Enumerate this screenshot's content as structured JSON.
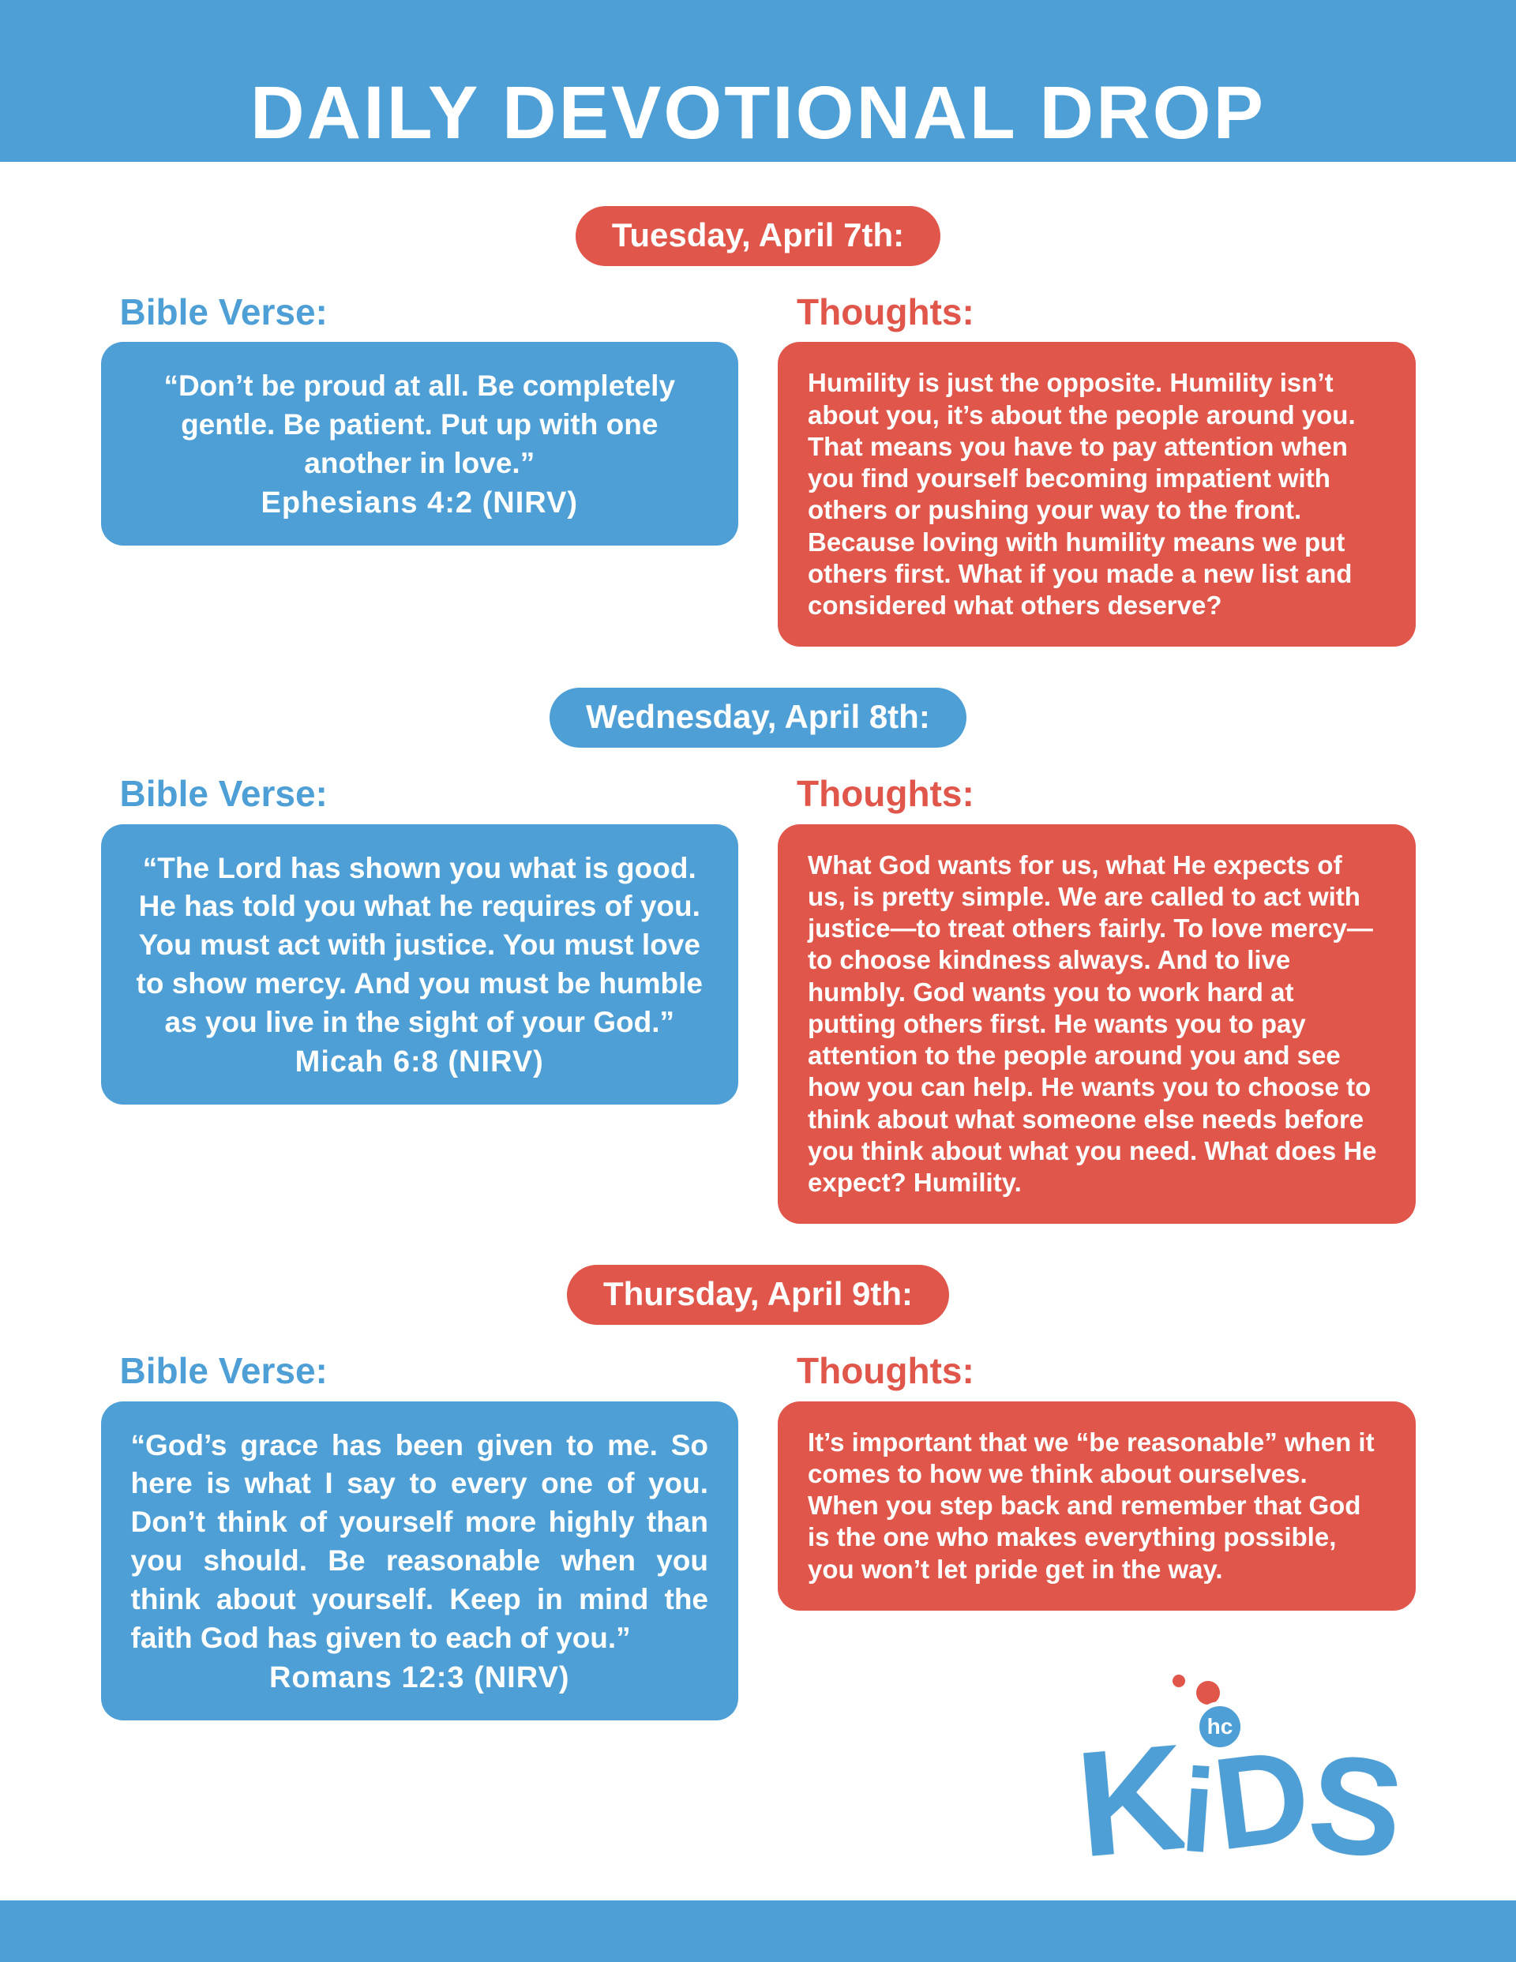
{
  "header": {
    "title": "DAILY DEVOTIONAL DROP"
  },
  "colors": {
    "blue": "#4D9FD6",
    "red": "#E0564A",
    "text_on_boxes": "#FFFFFF",
    "background": "#FFFFFF"
  },
  "labels": {
    "verse_heading": "Bible Verse:",
    "thoughts_heading": "Thoughts:"
  },
  "sections": [
    {
      "date": "Tuesday, April 7th:",
      "pill_color": "#E0564A",
      "verse": "“Don’t be proud at all. Be completely gentle. Be patient. Put up with one another in love.”",
      "reference": "Ephesians 4:2 (NIRV)",
      "thoughts": "Humility is just the opposite. Humility isn’t about you, it’s about the people around you. That means you have to pay attention when you find yourself becoming impatient with others or pushing your way to the front. Because loving with humility means we put others first. What if you made a new list and considered what others deserve?"
    },
    {
      "date": "Wednesday, April 8th:",
      "pill_color": "#4D9FD6",
      "verse": "“The Lord has shown you what is good. He has told you what he requires of you. You must act with justice. You must love to show mercy. And you must be humble as you live in the sight of your God.”",
      "reference": "Micah 6:8 (NIRV)",
      "thoughts": "What God wants for us, what He expects of us, is pretty simple. We are called to act with justice—to treat others fairly. To love mercy—to choose kindness always. And to live humbly. God wants you to work hard at putting others first. He wants you to pay attention to the people around you and see how you can help. He wants you to choose to think about what someone else needs before you think about what you need. What does He expect? Humility."
    },
    {
      "date": "Thursday, April 9th:",
      "pill_color": "#E0564A",
      "verse": "“God’s grace has been given to me. So here is what I say to every one of you. Don’t think of yourself more highly than you should. Be reasonable when you think about yourself. Keep in mind the faith God has given to each of you.”",
      "reference": "Romans 12:3 (NIRV)",
      "thoughts": "It’s important that we “be reasonable” when it comes to how we think about ourselves. When you step back and remember that God is the one who makes everything possible, you won’t let pride get in the way."
    }
  ],
  "logo": {
    "letters": [
      "K",
      "i",
      "D",
      "S"
    ],
    "badge": "hc"
  }
}
